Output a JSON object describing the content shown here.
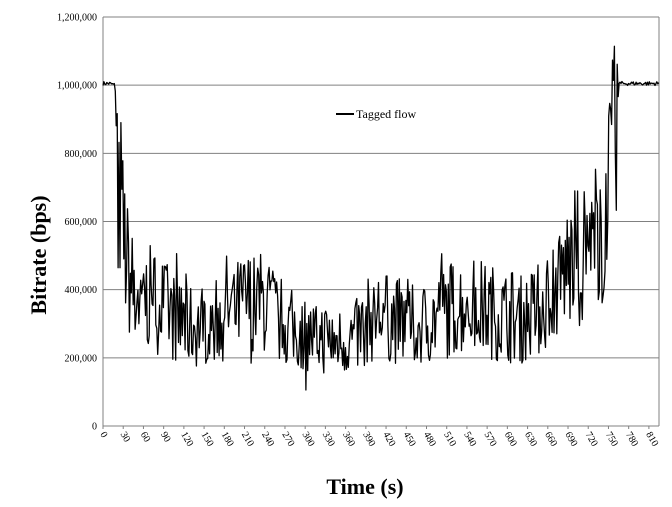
{
  "chart_data": {
    "type": "line",
    "title": "",
    "xlabel": "Time (s)",
    "ylabel": "Bitrate (bps)",
    "xlim": [
      0,
      825
    ],
    "ylim": [
      0,
      1200000
    ],
    "grid": true,
    "legend_position": "top-center",
    "y_tick_labels": [
      "0",
      "200,000",
      "400,000",
      "600,000",
      "800,000",
      "1,000,000",
      "1,200,000"
    ],
    "x_tick_labels": [
      "0",
      "30",
      "60",
      "90",
      "120",
      "150",
      "180",
      "210",
      "240",
      "270",
      "300",
      "330",
      "360",
      "390",
      "420",
      "450",
      "480",
      "510",
      "540",
      "570",
      "600",
      "630",
      "660",
      "690",
      "720",
      "750",
      "780",
      "810"
    ],
    "series": [
      {
        "name": "Tagged flow",
        "color": "#000000",
        "x": [
          0,
          10,
          18,
          21,
          24,
          27,
          30,
          33,
          36,
          40,
          45,
          50,
          60,
          75,
          90,
          105,
          120,
          135,
          150,
          165,
          180,
          195,
          210,
          225,
          240,
          255,
          270,
          285,
          300,
          315,
          330,
          345,
          360,
          375,
          390,
          405,
          420,
          435,
          450,
          465,
          480,
          495,
          510,
          525,
          540,
          555,
          570,
          585,
          600,
          615,
          630,
          645,
          660,
          675,
          690,
          705,
          720,
          735,
          745,
          752,
          758,
          762,
          765,
          780,
          795,
          810,
          825
        ],
        "y": [
          1005000,
          1005000,
          1000000,
          780000,
          700000,
          650000,
          560000,
          520000,
          470000,
          430000,
          400000,
          390000,
          380000,
          370000,
          350000,
          320000,
          300000,
          290000,
          300000,
          310000,
          330000,
          340000,
          360000,
          370000,
          360000,
          330000,
          300000,
          280000,
          270000,
          260000,
          260000,
          250000,
          250000,
          260000,
          300000,
          330000,
          320000,
          310000,
          300000,
          290000,
          300000,
          320000,
          340000,
          350000,
          360000,
          350000,
          340000,
          330000,
          320000,
          310000,
          320000,
          340000,
          380000,
          420000,
          470000,
          500000,
          520000,
          560000,
          620000,
          700000,
          790000,
          820000,
          1005000,
          1005000,
          1005000,
          1005000,
          1005000
        ]
      }
    ]
  }
}
